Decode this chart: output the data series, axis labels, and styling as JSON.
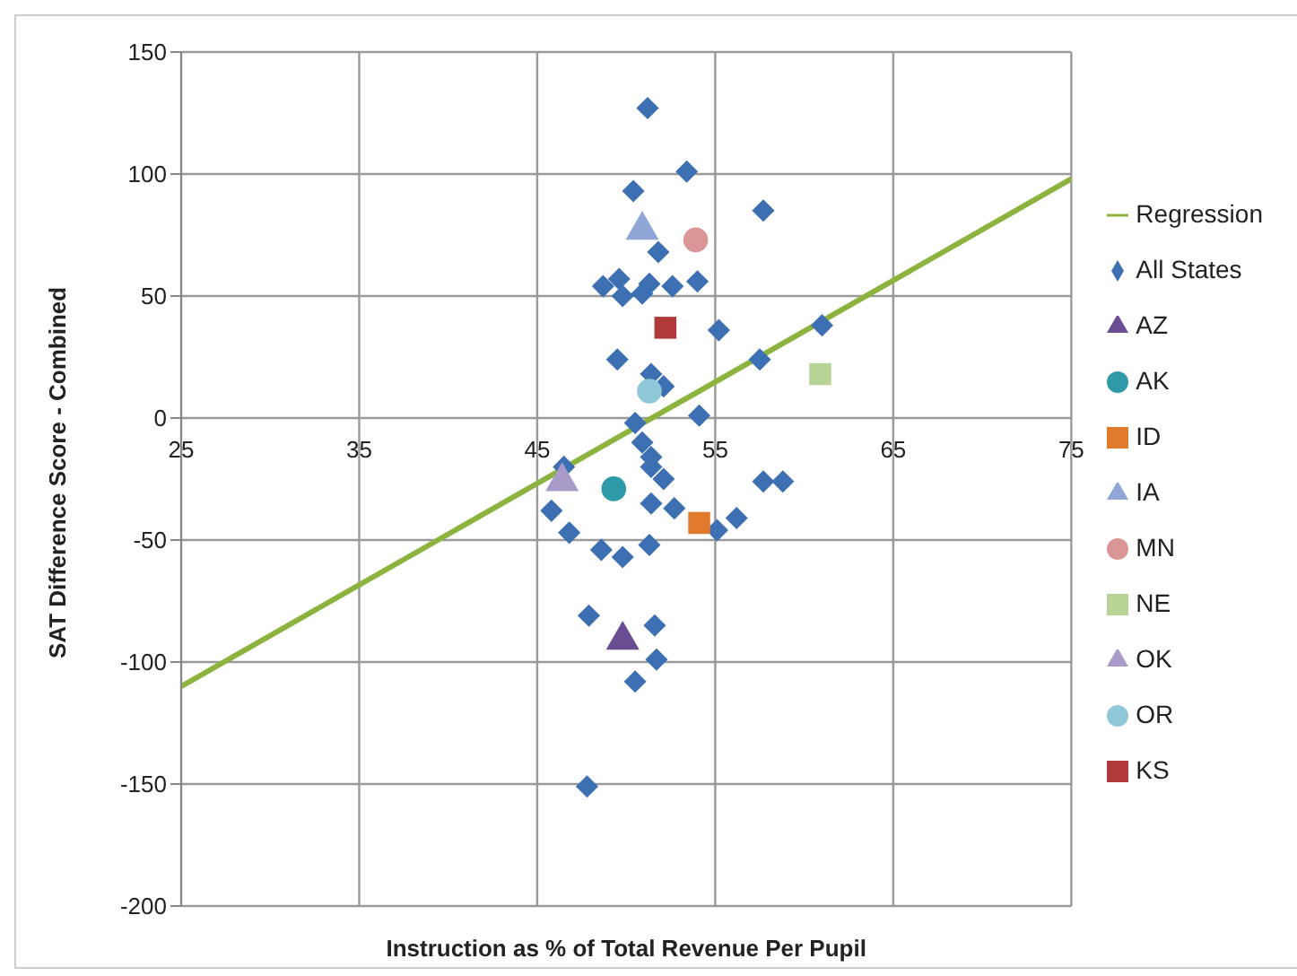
{
  "chart_data": {
    "type": "scatter",
    "xlabel": "Instruction as % of Total Revenue Per Pupil",
    "ylabel": "SAT Difference Score - Combined",
    "xlim": [
      25,
      75
    ],
    "xticks": [
      25,
      35,
      45,
      55,
      65,
      75
    ],
    "ylim": [
      -200,
      150
    ],
    "yticks": [
      -200,
      -150,
      -100,
      -50,
      0,
      50,
      100,
      150
    ],
    "grid": true,
    "legend": "right",
    "series": [
      {
        "name": "Regression",
        "type": "line",
        "color": "#8db33f",
        "marker": "none",
        "line_style": "solid",
        "x": [
          25,
          75
        ],
        "values": [
          -110,
          98
        ]
      },
      {
        "name": "All States",
        "color": "#3d70b2",
        "marker": "diamond",
        "x": [
          51.2,
          53.4,
          50.4,
          57.7,
          51.8,
          49.6,
          48.7,
          49.8,
          50.9,
          51.3,
          52.6,
          54.0,
          55.2,
          61.0,
          49.5,
          51.4,
          52.1,
          57.5,
          54.1,
          50.5,
          50.9,
          51.4,
          51.4,
          52.1,
          46.5,
          51.4,
          52.7,
          45.8,
          46.8,
          48.6,
          49.8,
          51.3,
          56.2,
          55.1,
          57.7,
          58.8,
          47.9,
          51.6,
          51.7,
          50.5,
          47.8
        ],
        "values": [
          127,
          101,
          93,
          85,
          68,
          57,
          54,
          50,
          51,
          55,
          54,
          56,
          36,
          38,
          24,
          18,
          13,
          24,
          1,
          -2,
          -10,
          -16,
          -20,
          -25,
          -20,
          -35,
          -37,
          -38,
          -47,
          -54,
          -57,
          -52,
          -41,
          -46,
          -26,
          -26,
          -81,
          -85,
          -99,
          -108,
          -151
        ]
      },
      {
        "name": "AZ",
        "type": "scatter",
        "color": "#6a4c93",
        "marker": "triangle",
        "x": [
          49.8
        ],
        "values": [
          -91
        ]
      },
      {
        "name": "AK",
        "type": "scatter",
        "color": "#2e9aa8",
        "marker": "circle",
        "x": [
          49.3
        ],
        "values": [
          -29
        ]
      },
      {
        "name": "ID",
        "type": "scatter",
        "color": "#e07b2e",
        "marker": "square",
        "x": [
          54.1
        ],
        "values": [
          -43
        ]
      },
      {
        "name": "IA",
        "type": "scatter",
        "color": "#8fa6d6",
        "marker": "triangle",
        "x": [
          50.9
        ],
        "values": [
          77
        ]
      },
      {
        "name": "MN",
        "type": "scatter",
        "color": "#d99694",
        "marker": "circle",
        "x": [
          53.9
        ],
        "values": [
          73
        ]
      },
      {
        "name": "NE",
        "type": "scatter",
        "color": "#b7d496",
        "marker": "square",
        "x": [
          60.9
        ],
        "values": [
          18
        ]
      },
      {
        "name": "OK",
        "type": "scatter",
        "color": "#a99bc9",
        "marker": "triangle",
        "x": [
          46.4
        ],
        "values": [
          -26
        ]
      },
      {
        "name": "OR",
        "type": "scatter",
        "color": "#8fc8d9",
        "marker": "circle",
        "x": [
          51.3
        ],
        "values": [
          11
        ]
      },
      {
        "name": "KS",
        "type": "scatter",
        "color": "#b03a3a",
        "marker": "square",
        "x": [
          52.2
        ],
        "values": [
          37
        ]
      }
    ]
  }
}
